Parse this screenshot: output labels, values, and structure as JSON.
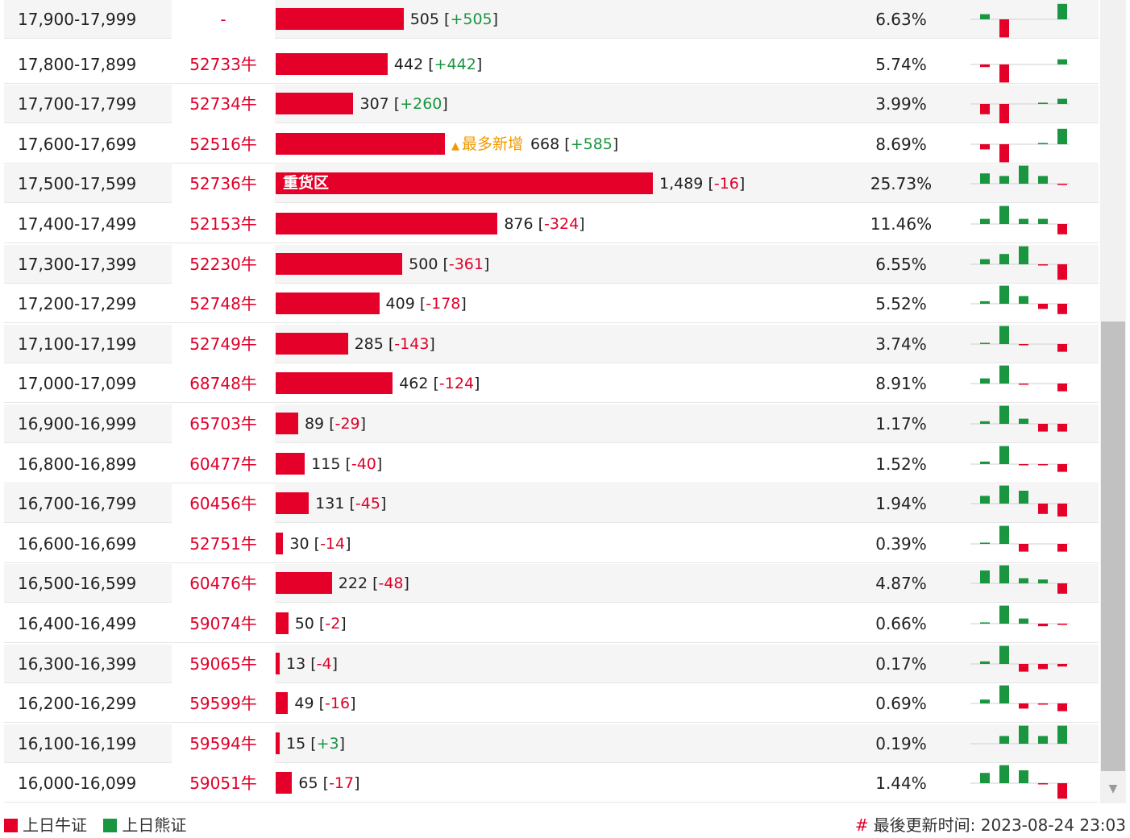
{
  "colors": {
    "bull": "#e40028",
    "bear": "#1a9641",
    "accent_new": "#f09a00"
  },
  "rows": [
    {
      "range": "17,900-17,999",
      "code": "-",
      "value": 505,
      "value_text": "505",
      "change": "+505",
      "pct": "6.63%",
      "spark": [
        2,
        -7,
        0,
        0,
        6
      ]
    },
    {
      "range": "17,800-17,899",
      "code": "52733牛",
      "value": 442,
      "value_text": "442",
      "change": "+442",
      "pct": "5.74%",
      "spark": [
        -1,
        -7,
        0,
        0,
        2
      ]
    },
    {
      "range": "17,700-17,799",
      "code": "52734牛",
      "value": 307,
      "value_text": "307",
      "change": "+260",
      "pct": "3.99%",
      "spark": [
        -4,
        -8,
        0,
        0.5,
        2
      ]
    },
    {
      "range": "17,600-17,699",
      "code": "52516牛",
      "value": 668,
      "value_text": "668",
      "change": "+585",
      "pct": "8.69%",
      "tag": "最多新增",
      "spark": [
        -2,
        -7,
        0,
        0.5,
        6
      ]
    },
    {
      "range": "17,500-17,599",
      "code": "52736牛",
      "value": 1489,
      "value_text": "1,489",
      "change": "-16",
      "pct": "25.73%",
      "label": "重货区",
      "spark": [
        4,
        3,
        7,
        3,
        -0.4
      ]
    },
    {
      "range": "17,400-17,499",
      "code": "52153牛",
      "value": 876,
      "value_text": "876",
      "change": "-324",
      "pct": "11.46%",
      "spark": [
        2,
        7,
        2,
        2,
        -4
      ]
    },
    {
      "range": "17,300-17,399",
      "code": "52230牛",
      "value": 500,
      "value_text": "500",
      "change": "-361",
      "pct": "6.55%",
      "spark": [
        2,
        4,
        7,
        -0.4,
        -6
      ]
    },
    {
      "range": "17,200-17,299",
      "code": "52748牛",
      "value": 409,
      "value_text": "409",
      "change": "-178",
      "pct": "5.52%",
      "spark": [
        1,
        7,
        3,
        -2,
        -4
      ]
    },
    {
      "range": "17,100-17,199",
      "code": "52749牛",
      "value": 285,
      "value_text": "285",
      "change": "-143",
      "pct": "3.74%",
      "spark": [
        0.5,
        7,
        -0.4,
        0,
        -3
      ]
    },
    {
      "range": "17,000-17,099",
      "code": "68748牛",
      "value": 462,
      "value_text": "462",
      "change": "-124",
      "pct": "8.91%",
      "spark": [
        2,
        7,
        -0.4,
        0,
        -3
      ]
    },
    {
      "range": "16,900-16,999",
      "code": "65703牛",
      "value": 89,
      "value_text": "89",
      "change": "-29",
      "pct": "1.17%",
      "spark": [
        1,
        7,
        2,
        -3,
        -3
      ]
    },
    {
      "range": "16,800-16,899",
      "code": "60477牛",
      "value": 115,
      "value_text": "115",
      "change": "-40",
      "pct": "1.52%",
      "spark": [
        1,
        7,
        -0.4,
        -0.4,
        -3
      ]
    },
    {
      "range": "16,700-16,799",
      "code": "60456牛",
      "value": 131,
      "value_text": "131",
      "change": "-45",
      "pct": "1.94%",
      "spark": [
        3,
        7,
        5,
        -4,
        -5
      ]
    },
    {
      "range": "16,600-16,699",
      "code": "52751牛",
      "value": 30,
      "value_text": "30",
      "change": "-14",
      "pct": "0.39%",
      "spark": [
        0.5,
        7,
        -3,
        0,
        -3
      ]
    },
    {
      "range": "16,500-16,599",
      "code": "60476牛",
      "value": 222,
      "value_text": "222",
      "change": "-48",
      "pct": "4.87%",
      "spark": [
        5,
        7,
        2,
        1.5,
        -4
      ]
    },
    {
      "range": "16,400-16,499",
      "code": "59074牛",
      "value": 50,
      "value_text": "50",
      "change": "-2",
      "pct": "0.66%",
      "spark": [
        0.5,
        7,
        2,
        -1,
        -0.4
      ]
    },
    {
      "range": "16,300-16,399",
      "code": "59065牛",
      "value": 13,
      "value_text": "13",
      "change": "-4",
      "pct": "0.17%",
      "spark": [
        1,
        7,
        -3,
        -2,
        -1
      ]
    },
    {
      "range": "16,200-16,299",
      "code": "59599牛",
      "value": 49,
      "value_text": "49",
      "change": "-16",
      "pct": "0.69%",
      "spark": [
        1.5,
        7,
        -2,
        -0.4,
        -3
      ]
    },
    {
      "range": "16,100-16,199",
      "code": "59594牛",
      "value": 15,
      "value_text": "15",
      "change": "+3",
      "pct": "0.19%",
      "spark": [
        0,
        3,
        7,
        3,
        7
      ]
    },
    {
      "range": "16,000-16,099",
      "code": "59051牛",
      "value": 65,
      "value_text": "65",
      "change": "-17",
      "pct": "1.44%",
      "spark": [
        4,
        7,
        5,
        -0.4,
        -6
      ]
    }
  ],
  "legend": {
    "bull_label": "上日牛证",
    "bear_label": "上日熊证"
  },
  "updated": {
    "hash": "#",
    "text": "最後更新时间: 2023-08-24 23:03"
  }
}
